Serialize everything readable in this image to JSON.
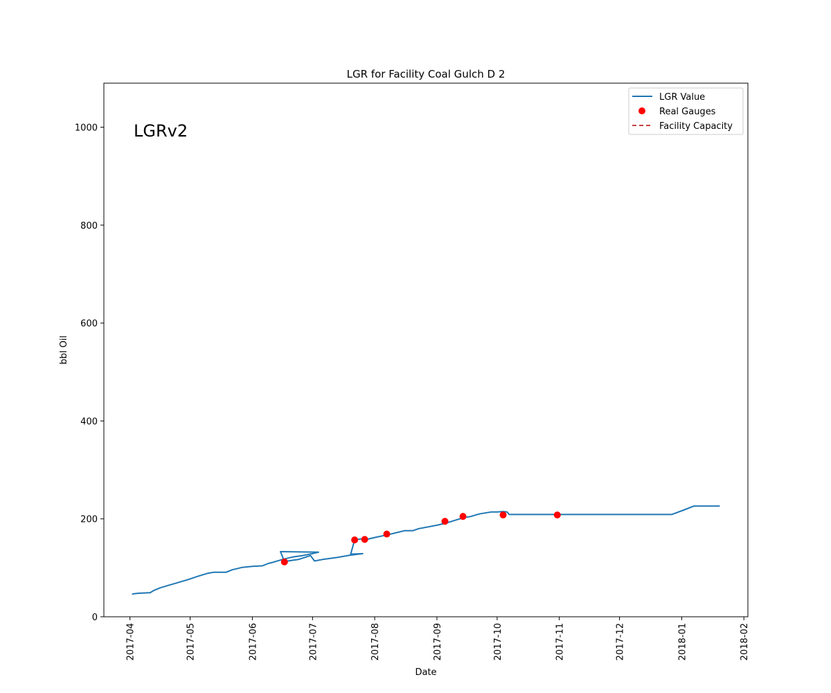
{
  "chart_data": {
    "type": "line",
    "title": "LGR for Facility Coal Gulch D 2",
    "xlabel": "Date",
    "ylabel": "bbl Oil",
    "annotation": "LGRv2",
    "xlim": [
      "2017-03-19",
      "2018-02-03"
    ],
    "ylim": [
      0,
      1090
    ],
    "x_ticks": [
      "2017-04",
      "2017-05",
      "2017-06",
      "2017-07",
      "2017-08",
      "2017-09",
      "2017-10",
      "2017-11",
      "2017-12",
      "2018-01",
      "2018-02"
    ],
    "y_ticks": [
      0,
      200,
      400,
      600,
      800,
      1000
    ],
    "grid": false,
    "legend_position": "upper right",
    "colors": {
      "line": "#1f77b4",
      "gauges": "#ff0000",
      "capacity": "#b00000"
    },
    "series": [
      {
        "name": "LGR Value",
        "kind": "line",
        "points": [
          [
            "2017-04-02",
            46
          ],
          [
            "2017-04-03",
            47
          ],
          [
            "2017-04-05",
            48
          ],
          [
            "2017-04-10",
            49
          ],
          [
            "2017-04-11",
            49
          ],
          [
            "2017-04-13",
            54
          ],
          [
            "2017-04-16",
            59
          ],
          [
            "2017-04-20",
            64
          ],
          [
            "2017-04-25",
            70
          ],
          [
            "2017-04-30",
            76
          ],
          [
            "2017-05-05",
            83
          ],
          [
            "2017-05-10",
            89
          ],
          [
            "2017-05-13",
            91
          ],
          [
            "2017-05-19",
            91
          ],
          [
            "2017-05-22",
            96
          ],
          [
            "2017-05-27",
            101
          ],
          [
            "2017-06-01",
            103
          ],
          [
            "2017-06-06",
            104
          ],
          [
            "2017-06-09",
            109
          ],
          [
            "2017-06-11",
            111
          ],
          [
            "2017-06-16",
            117
          ],
          [
            "2017-06-21",
            122
          ],
          [
            "2017-06-26",
            125
          ],
          [
            "2017-07-01",
            129
          ],
          [
            "2017-07-04",
            132
          ],
          [
            "2017-06-15",
            133
          ],
          [
            "2017-06-17",
            113
          ],
          [
            "2017-06-24",
            117
          ],
          [
            "2017-06-30",
            125
          ],
          [
            "2017-07-02",
            114
          ],
          [
            "2017-07-06",
            117
          ],
          [
            "2017-07-13",
            121
          ],
          [
            "2017-07-20",
            126
          ],
          [
            "2017-07-26",
            129
          ],
          [
            "2017-07-20",
            128
          ],
          [
            "2017-07-22",
            157
          ],
          [
            "2017-07-25",
            159
          ],
          [
            "2017-07-27",
            160
          ],
          [
            "2017-07-28",
            158
          ],
          [
            "2017-08-01",
            162
          ],
          [
            "2017-08-08",
            168
          ],
          [
            "2017-08-12",
            172
          ],
          [
            "2017-08-16",
            176
          ],
          [
            "2017-08-20",
            176
          ],
          [
            "2017-08-23",
            180
          ],
          [
            "2017-09-01",
            187
          ],
          [
            "2017-09-06",
            192
          ],
          [
            "2017-09-10",
            197
          ],
          [
            "2017-09-14",
            202
          ],
          [
            "2017-09-18",
            205
          ],
          [
            "2017-09-22",
            210
          ],
          [
            "2017-09-25",
            212
          ],
          [
            "2017-09-28",
            214
          ],
          [
            "2017-10-01",
            214
          ],
          [
            "2017-10-04",
            215
          ],
          [
            "2017-10-06",
            214
          ],
          [
            "2017-10-07",
            209
          ],
          [
            "2017-10-31",
            209
          ],
          [
            "2017-11-30",
            209
          ],
          [
            "2017-12-27",
            209
          ],
          [
            "2018-01-02",
            218
          ],
          [
            "2018-01-07",
            226
          ],
          [
            "2018-01-20",
            226
          ]
        ]
      },
      {
        "name": "Real Gauges",
        "kind": "scatter",
        "points": [
          [
            "2017-06-17",
            112
          ],
          [
            "2017-07-22",
            157
          ],
          [
            "2017-07-27",
            158
          ],
          [
            "2017-08-07",
            169
          ],
          [
            "2017-09-05",
            195
          ],
          [
            "2017-09-14",
            205
          ],
          [
            "2017-10-04",
            208
          ],
          [
            "2017-10-31",
            208
          ]
        ]
      },
      {
        "name": "Facility Capacity",
        "kind": "dashed-line",
        "points": []
      }
    ]
  }
}
